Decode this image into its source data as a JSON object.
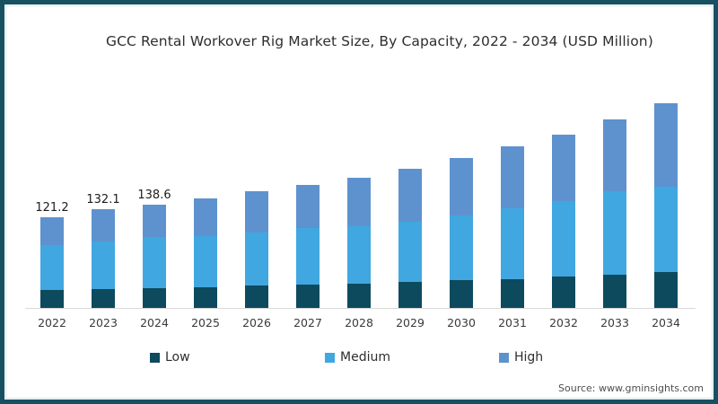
{
  "header": {
    "title": "GCC Rental Workover Rig Market Size, By Capacity, 2022 - 2034 (USD Million)"
  },
  "footer": {
    "source": "Source: www.gminsights.com"
  },
  "colors": {
    "frame_border": "#175062",
    "low": "#0d4a5e",
    "medium": "#41a7e0",
    "high": "#5e92ce",
    "axis_line": "#d9d9d9"
  },
  "legend": {
    "items": [
      {
        "label": "Low",
        "color": "#0d4a5e"
      },
      {
        "label": "Medium",
        "color": "#41a7e0"
      },
      {
        "label": "High",
        "color": "#5e92ce"
      }
    ]
  },
  "chart_data": {
    "type": "bar",
    "stacked": true,
    "title": "GCC Rental Workover Rig Market Size, By Capacity, 2022 - 2034 (USD Million)",
    "unit": "USD Million",
    "categories": [
      "2022",
      "2023",
      "2024",
      "2025",
      "2026",
      "2027",
      "2028",
      "2029",
      "2030",
      "2031",
      "2032",
      "2033",
      "2034"
    ],
    "series": [
      {
        "name": "Low",
        "color": "#0d4a5e",
        "values": [
          24.5,
          25.4,
          26.5,
          27.6,
          29.6,
          31.6,
          32.8,
          34.4,
          36.8,
          38.8,
          41.6,
          44.8,
          48.4
        ]
      },
      {
        "name": "Medium",
        "color": "#41a7e0",
        "values": [
          59.4,
          63.8,
          68.1,
          68.0,
          71.2,
          75.2,
          76.4,
          81.1,
          86.8,
          94.8,
          101.2,
          110.9,
          114.2
        ]
      },
      {
        "name": "High",
        "color": "#5e92ce",
        "values": [
          37.3,
          42.9,
          44.0,
          50.8,
          54.8,
          58.0,
          64.4,
          70.1,
          76.8,
          82.1,
          88.8,
          96.7,
          111.0
        ]
      }
    ],
    "totals": [
      121.2,
      132.1,
      138.6,
      146.4,
      155.6,
      164.8,
      173.6,
      185.6,
      200.4,
      215.7,
      231.6,
      252.4,
      273.6
    ],
    "data_labels": [
      "121.2",
      "132.1",
      "138.6",
      null,
      null,
      null,
      null,
      null,
      null,
      null,
      null,
      null,
      null
    ],
    "xlabel": "",
    "ylabel": "",
    "grid": false,
    "y_axis_visible": false,
    "legend_position": "bottom"
  }
}
